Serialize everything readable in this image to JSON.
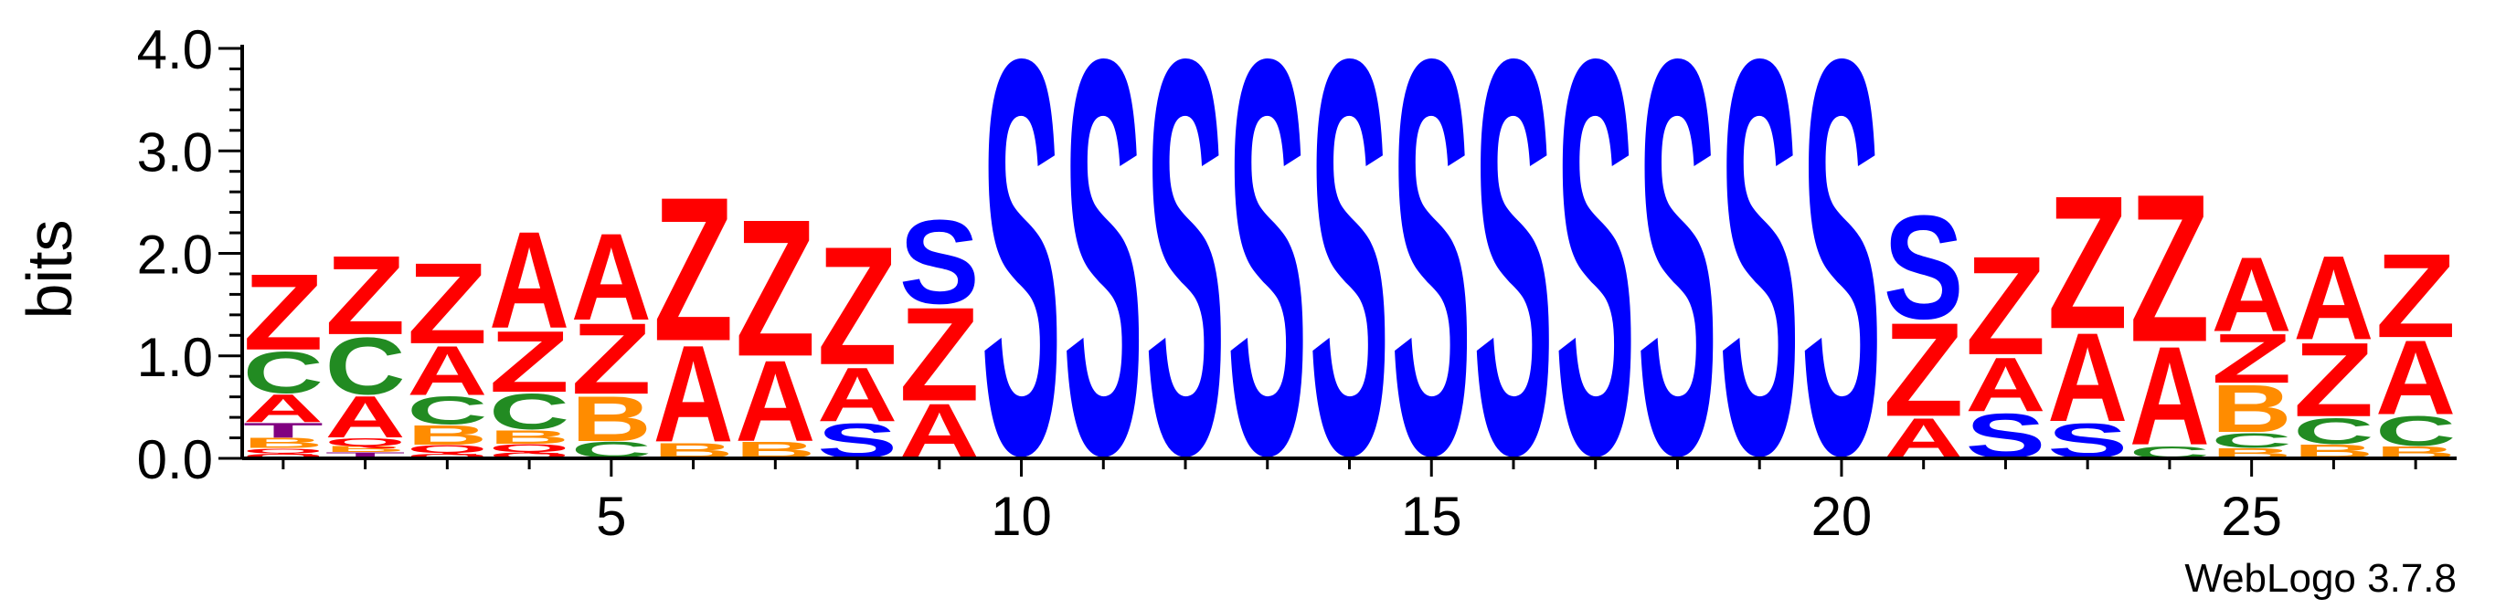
{
  "chart_data": {
    "type": "sequence-logo",
    "ylabel": "bits",
    "ylim": [
      0,
      4.0
    ],
    "yticks": [
      "0.0",
      "1.0",
      "2.0",
      "3.0",
      "4.0"
    ],
    "xlim": [
      0.5,
      27.5
    ],
    "xticks": [
      "5",
      "10",
      "15",
      "20",
      "25"
    ],
    "colors": {
      "Z": "#ff0000",
      "A": "#ff0000",
      "S": "#0000ff",
      "C": "#228b22",
      "B": "#ff8c00",
      "T": "#800080",
      "Q": "#ff0000",
      "O": "#ff0000"
    },
    "positions": [
      {
        "x": 1,
        "stack": [
          [
            "O",
            0.05
          ],
          [
            "Q",
            0.05
          ],
          [
            "B",
            0.1
          ],
          [
            "T",
            0.15
          ],
          [
            "A",
            0.28
          ],
          [
            "C",
            0.42
          ],
          [
            "Z",
            0.77
          ]
        ]
      },
      {
        "x": 2,
        "stack": [
          [
            "T",
            0.06
          ],
          [
            "B",
            0.06
          ],
          [
            "Q",
            0.08
          ],
          [
            "A",
            0.42
          ],
          [
            "C",
            0.58
          ],
          [
            "Z",
            0.8
          ]
        ]
      },
      {
        "x": 3,
        "stack": [
          [
            "O",
            0.05
          ],
          [
            "Q",
            0.08
          ],
          [
            "B",
            0.2
          ],
          [
            "C",
            0.28
          ],
          [
            "A",
            0.5
          ],
          [
            "Z",
            0.82
          ]
        ]
      },
      {
        "x": 4,
        "stack": [
          [
            "O",
            0.06
          ],
          [
            "Q",
            0.08
          ],
          [
            "B",
            0.14
          ],
          [
            "C",
            0.36
          ],
          [
            "Z",
            0.62
          ],
          [
            "A",
            0.98
          ]
        ]
      },
      {
        "x": 5,
        "stack": [
          [
            "C",
            0.16
          ],
          [
            "B",
            0.46
          ],
          [
            "Z",
            0.72
          ],
          [
            "A",
            0.88
          ]
        ]
      },
      {
        "x": 6,
        "stack": [
          [
            "B",
            0.15
          ],
          [
            "A",
            0.98
          ],
          [
            "Z",
            1.46
          ]
        ]
      },
      {
        "x": 7,
        "stack": [
          [
            "B",
            0.16
          ],
          [
            "A",
            0.82
          ],
          [
            "Z",
            1.39
          ]
        ]
      },
      {
        "x": 8,
        "stack": [
          [
            "S",
            0.35
          ],
          [
            "A",
            0.55
          ],
          [
            "Z",
            1.2
          ]
        ]
      },
      {
        "x": 9,
        "stack": [
          [
            "A",
            0.55
          ],
          [
            "Z",
            0.95
          ],
          [
            "S",
            0.85
          ]
        ]
      },
      {
        "x": 10,
        "stack": [
          [
            "S",
            4.0
          ]
        ]
      },
      {
        "x": 11,
        "stack": [
          [
            "S",
            4.0
          ]
        ]
      },
      {
        "x": 12,
        "stack": [
          [
            "S",
            4.0
          ]
        ]
      },
      {
        "x": 13,
        "stack": [
          [
            "S",
            4.0
          ]
        ]
      },
      {
        "x": 14,
        "stack": [
          [
            "S",
            4.0
          ]
        ]
      },
      {
        "x": 15,
        "stack": [
          [
            "S",
            4.0
          ]
        ]
      },
      {
        "x": 16,
        "stack": [
          [
            "S",
            4.0
          ]
        ]
      },
      {
        "x": 17,
        "stack": [
          [
            "S",
            4.0
          ]
        ]
      },
      {
        "x": 18,
        "stack": [
          [
            "S",
            4.0
          ]
        ]
      },
      {
        "x": 19,
        "stack": [
          [
            "S",
            4.0
          ]
        ]
      },
      {
        "x": 20,
        "stack": [
          [
            "S",
            4.0
          ]
        ]
      },
      {
        "x": 21,
        "stack": [
          [
            "A",
            0.4
          ],
          [
            "Z",
            0.95
          ],
          [
            "S",
            1.05
          ]
        ]
      },
      {
        "x": 22,
        "stack": [
          [
            "S",
            0.45
          ],
          [
            "A",
            0.55
          ],
          [
            "Z",
            1.0
          ]
        ]
      },
      {
        "x": 23,
        "stack": [
          [
            "S",
            0.35
          ],
          [
            "A",
            0.9
          ],
          [
            "Z",
            1.35
          ]
        ]
      },
      {
        "x": 24,
        "stack": [
          [
            "C",
            0.12
          ],
          [
            "A",
            1.0
          ],
          [
            "Z",
            1.5
          ]
        ]
      },
      {
        "x": 25,
        "stack": [
          [
            "B",
            0.1
          ],
          [
            "C",
            0.15
          ],
          [
            "B",
            0.48
          ],
          [
            "Z",
            0.5
          ],
          [
            "A",
            0.75
          ]
        ]
      },
      {
        "x": 26,
        "stack": [
          [
            "B",
            0.14
          ],
          [
            "C",
            0.26
          ],
          [
            "Z",
            0.75
          ],
          [
            "A",
            0.85
          ]
        ]
      },
      {
        "x": 27,
        "stack": [
          [
            "B",
            0.12
          ],
          [
            "C",
            0.3
          ],
          [
            "A",
            0.75
          ],
          [
            "Z",
            0.85
          ]
        ]
      }
    ]
  },
  "footer": {
    "credit": "WebLogo 3.7.8"
  }
}
